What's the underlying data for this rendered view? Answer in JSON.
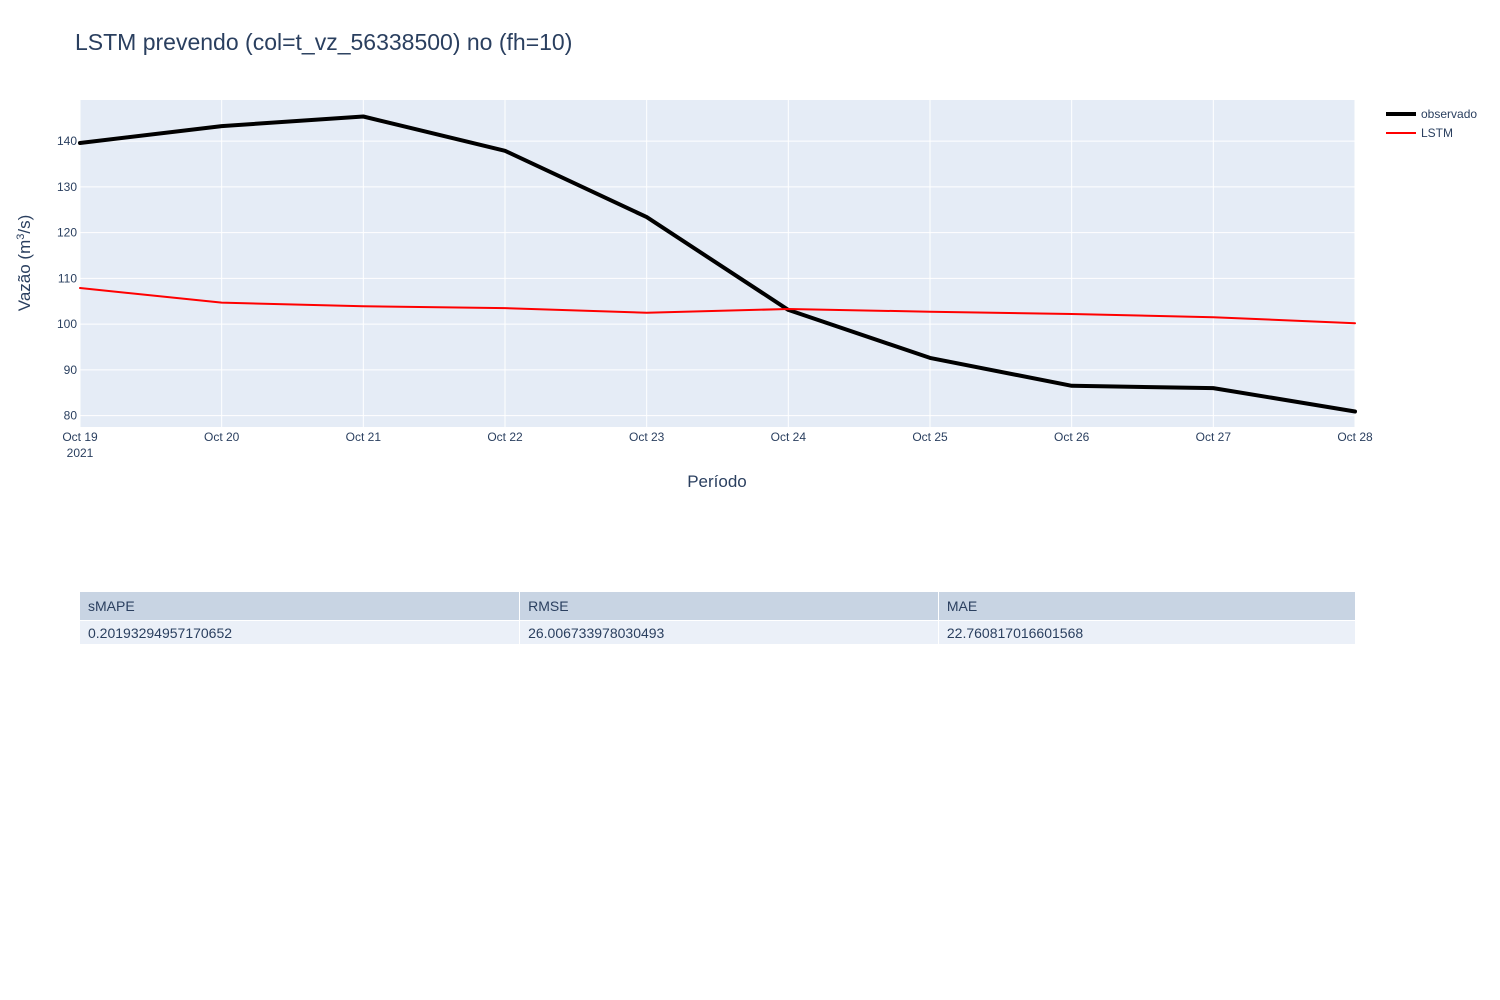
{
  "chart_data": {
    "type": "line",
    "title": "LSTM prevendo (col=t_vz_56338500) no (fh=10)",
    "xlabel": "Período",
    "ylabel": "Vazão (m³/s)",
    "ylabel_parts": {
      "main": "Vazão (m",
      "sup": "3",
      "tail": "/s)"
    },
    "x": [
      "2021-10-19",
      "2021-10-20",
      "2021-10-21",
      "2021-10-22",
      "2021-10-23",
      "2021-10-24",
      "2021-10-25",
      "2021-10-26",
      "2021-10-27",
      "2021-10-28"
    ],
    "x_tick_labels": [
      "Oct 19",
      "Oct 20",
      "Oct 21",
      "Oct 22",
      "Oct 23",
      "Oct 24",
      "Oct 25",
      "Oct 26",
      "Oct 27",
      "Oct 28"
    ],
    "x_tick_year": "2021",
    "yticks": [
      80,
      90,
      100,
      110,
      120,
      130,
      140
    ],
    "ylim": [
      77.5,
      149
    ],
    "grid": true,
    "legend_position": "top-right",
    "series": [
      {
        "name": "observado",
        "color": "#000000",
        "width": 4,
        "values": [
          139.6,
          143.3,
          145.4,
          137.9,
          123.4,
          103.1,
          92.6,
          86.5,
          86.0,
          80.9
        ]
      },
      {
        "name": "LSTM",
        "color": "#ff0000",
        "width": 2,
        "values": [
          107.9,
          104.7,
          103.9,
          103.5,
          102.5,
          103.3,
          102.7,
          102.2,
          101.5,
          100.2
        ]
      }
    ]
  },
  "table": {
    "headers": [
      "sMAPE",
      "RMSE",
      "MAE"
    ],
    "rows": [
      [
        "0.20193294957170652",
        "26.006733978030493",
        "22.760817016601568"
      ]
    ]
  },
  "colors": {
    "plot_bg": "#e5ecf6",
    "header_bg": "#c8d4e3",
    "cell_bg": "#ebf0f8",
    "text": "#2a3f5f"
  }
}
